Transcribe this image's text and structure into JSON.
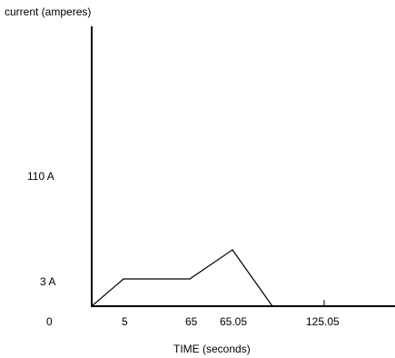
{
  "chart_data": {
    "type": "line",
    "title": "",
    "ylabel": "current (amperes)",
    "xlabel": "TIME (seconds)",
    "origin_label": "0",
    "grid": false,
    "legend": "none",
    "x_tick_labels": [
      "5",
      "65",
      "65.05",
      "125.05"
    ],
    "y_tick_labels": [
      "110 A",
      "3 A"
    ],
    "series": [
      {
        "points": [
          {
            "x_label": "0",
            "y": 0
          },
          {
            "x_label": "5",
            "y": 3
          },
          {
            "x_label": "65",
            "y": 3
          },
          {
            "x_label": "65.05",
            "y": 6.2
          },
          {
            "x_label": "125.05",
            "y": 0
          }
        ]
      }
    ]
  }
}
